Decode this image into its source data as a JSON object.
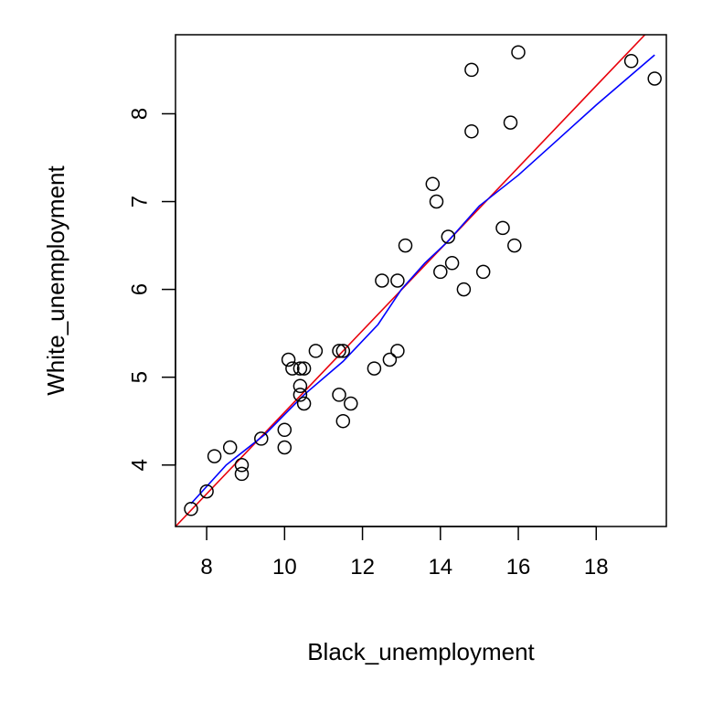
{
  "chart_data": {
    "type": "scatter",
    "title": "",
    "xlabel": "Black_unemployment",
    "ylabel": "White_unemployment",
    "xlim": [
      7.2,
      19.8
    ],
    "ylim": [
      3.3,
      8.9
    ],
    "x_ticks": [
      8,
      10,
      12,
      14,
      16,
      18
    ],
    "y_ticks": [
      4,
      5,
      6,
      7,
      8
    ],
    "grid": false,
    "legend": "none",
    "points": [
      {
        "x": 7.6,
        "y": 3.5
      },
      {
        "x": 8.0,
        "y": 3.7
      },
      {
        "x": 8.2,
        "y": 4.1
      },
      {
        "x": 8.6,
        "y": 4.2
      },
      {
        "x": 8.9,
        "y": 4.0
      },
      {
        "x": 8.9,
        "y": 3.9
      },
      {
        "x": 9.4,
        "y": 4.3
      },
      {
        "x": 10.0,
        "y": 4.4
      },
      {
        "x": 10.0,
        "y": 4.2
      },
      {
        "x": 10.1,
        "y": 5.2
      },
      {
        "x": 10.2,
        "y": 5.1
      },
      {
        "x": 10.4,
        "y": 5.1
      },
      {
        "x": 10.4,
        "y": 4.9
      },
      {
        "x": 10.4,
        "y": 4.8
      },
      {
        "x": 10.5,
        "y": 5.1
      },
      {
        "x": 10.5,
        "y": 4.7
      },
      {
        "x": 10.8,
        "y": 5.3
      },
      {
        "x": 11.4,
        "y": 5.3
      },
      {
        "x": 11.5,
        "y": 5.3
      },
      {
        "x": 11.4,
        "y": 4.8
      },
      {
        "x": 11.5,
        "y": 4.5
      },
      {
        "x": 11.7,
        "y": 4.7
      },
      {
        "x": 12.3,
        "y": 5.1
      },
      {
        "x": 12.5,
        "y": 6.1
      },
      {
        "x": 12.7,
        "y": 5.2
      },
      {
        "x": 12.9,
        "y": 6.1
      },
      {
        "x": 12.9,
        "y": 5.3
      },
      {
        "x": 13.1,
        "y": 6.5
      },
      {
        "x": 13.8,
        "y": 7.2
      },
      {
        "x": 13.9,
        "y": 7.0
      },
      {
        "x": 14.0,
        "y": 6.2
      },
      {
        "x": 14.2,
        "y": 6.6
      },
      {
        "x": 14.3,
        "y": 6.3
      },
      {
        "x": 14.6,
        "y": 6.0
      },
      {
        "x": 14.8,
        "y": 8.5
      },
      {
        "x": 14.8,
        "y": 7.8
      },
      {
        "x": 15.1,
        "y": 6.2
      },
      {
        "x": 15.6,
        "y": 6.7
      },
      {
        "x": 15.8,
        "y": 7.9
      },
      {
        "x": 15.9,
        "y": 6.5
      },
      {
        "x": 16.0,
        "y": 8.7
      },
      {
        "x": 18.9,
        "y": 8.6
      },
      {
        "x": 19.5,
        "y": 8.4
      }
    ],
    "lines": [
      {
        "color": "#e8000b",
        "points": [
          {
            "x": 7.2,
            "y": 3.3
          },
          {
            "x": 19.25,
            "y": 8.9
          }
        ]
      },
      {
        "color": "#0000ff",
        "points": [
          {
            "x": 7.6,
            "y": 3.56
          },
          {
            "x": 8.5,
            "y": 4.0
          },
          {
            "x": 9.5,
            "y": 4.35
          },
          {
            "x": 10.5,
            "y": 4.8
          },
          {
            "x": 11.5,
            "y": 5.18
          },
          {
            "x": 12.4,
            "y": 5.6
          },
          {
            "x": 13.0,
            "y": 6.0
          },
          {
            "x": 13.6,
            "y": 6.3
          },
          {
            "x": 14.2,
            "y": 6.55
          },
          {
            "x": 15.0,
            "y": 6.95
          },
          {
            "x": 16.0,
            "y": 7.3
          },
          {
            "x": 17.0,
            "y": 7.7
          },
          {
            "x": 18.0,
            "y": 8.1
          },
          {
            "x": 19.5,
            "y": 8.67
          }
        ]
      }
    ]
  }
}
